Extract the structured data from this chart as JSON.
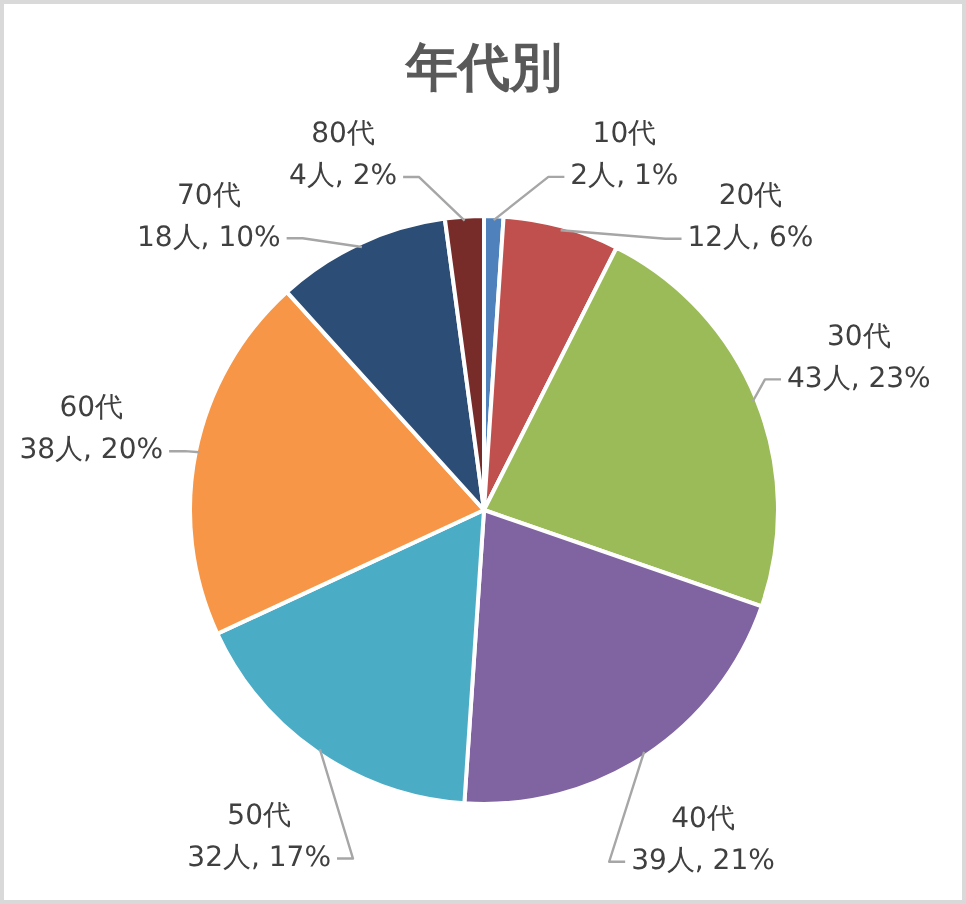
{
  "chart_data": {
    "type": "pie",
    "title": "年代別",
    "categories": [
      "10代",
      "20代",
      "30代",
      "40代",
      "50代",
      "60代",
      "70代",
      "80代"
    ],
    "values": [
      2,
      12,
      43,
      39,
      32,
      38,
      18,
      4
    ],
    "colors": [
      "#4f81bd",
      "#c0504d",
      "#9bbb59",
      "#8064a2",
      "#4bacc6",
      "#f79646",
      "#2c4d75",
      "#772c2a"
    ],
    "value_labels": [
      "2人, 1%",
      "12人, 6%",
      "43人, 23%",
      "39人, 21%",
      "32人, 17%",
      "38人, 20%",
      "18人, 10%",
      "4人, 2%"
    ]
  }
}
